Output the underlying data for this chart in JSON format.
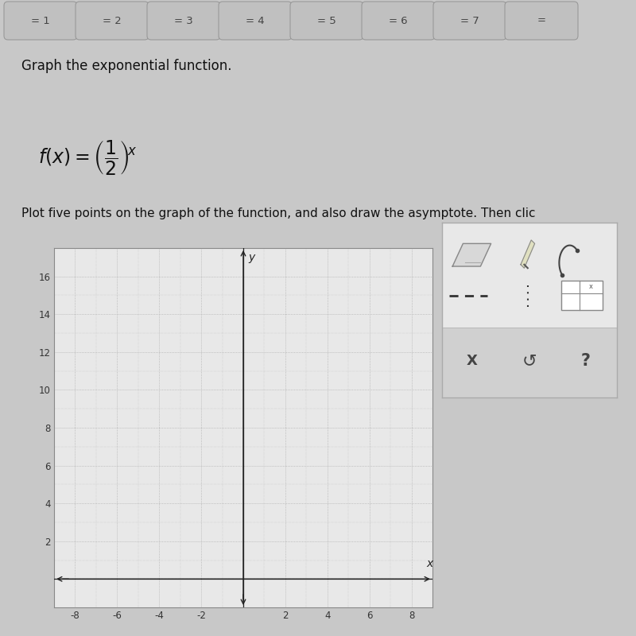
{
  "title_text": "Graph the exponential function.",
  "instruction": "Plot five points on the graph of the function, and also draw the asymptote. Then clic",
  "xlim": [
    -9,
    9
  ],
  "ylim": [
    -1.5,
    17.5
  ],
  "x_ticks": [
    -8,
    -6,
    -4,
    -2,
    2,
    4,
    6,
    8
  ],
  "y_ticks": [
    2,
    4,
    6,
    8,
    10,
    12,
    14,
    16
  ],
  "outer_bg": "#c8c8c8",
  "graph_bg": "#e8e8e8",
  "graph_border": "#888888",
  "minor_grid_color": "#b8b8b8",
  "major_grid_color": "#aaaaaa",
  "axis_color": "#222222",
  "tick_label_color": "#333333",
  "tab_labels": [
    "= 1",
    "= 2",
    "= 3",
    "= 4",
    "= 5",
    "= 6",
    "= 7",
    "="
  ],
  "tab_bg": "#c0c0c0",
  "tab_text_color": "#444444",
  "tools_bg": "#e8e8e8",
  "tools_border": "#aaaaaa",
  "tools_bottom_bg": "#d0d0d0"
}
